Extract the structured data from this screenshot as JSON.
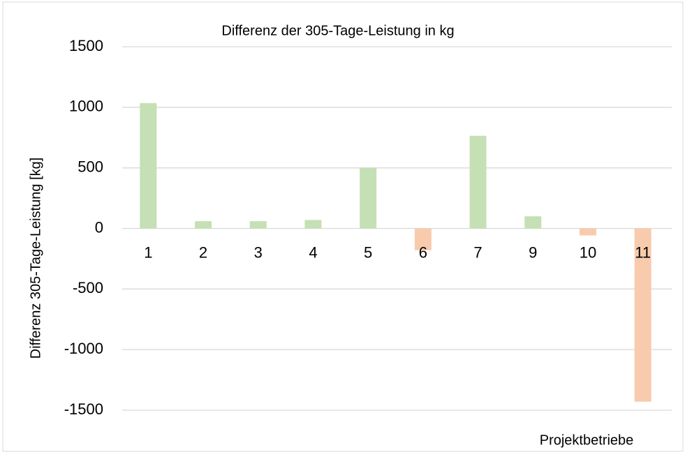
{
  "chart_data": {
    "type": "bar",
    "title": "Differenz der 305-Tage-Leistung in kg",
    "y_label": "Differenz  305-Tage-Leistung [kg]",
    "x_label": "Projektbetriebe",
    "categories": [
      "1",
      "2",
      "3",
      "4",
      "5",
      "6",
      "7",
      "9",
      "10",
      "11"
    ],
    "values": [
      1035,
      60,
      60,
      70,
      500,
      -180,
      765,
      100,
      -58,
      -1430
    ],
    "color": "#c5e0b4",
    "negative_color": "#f8cbad",
    "ylim": [
      -1500,
      1500
    ],
    "yticks": [
      -1500,
      -1000,
      -500,
      0,
      500,
      1000,
      1500
    ],
    "grid": true
  }
}
